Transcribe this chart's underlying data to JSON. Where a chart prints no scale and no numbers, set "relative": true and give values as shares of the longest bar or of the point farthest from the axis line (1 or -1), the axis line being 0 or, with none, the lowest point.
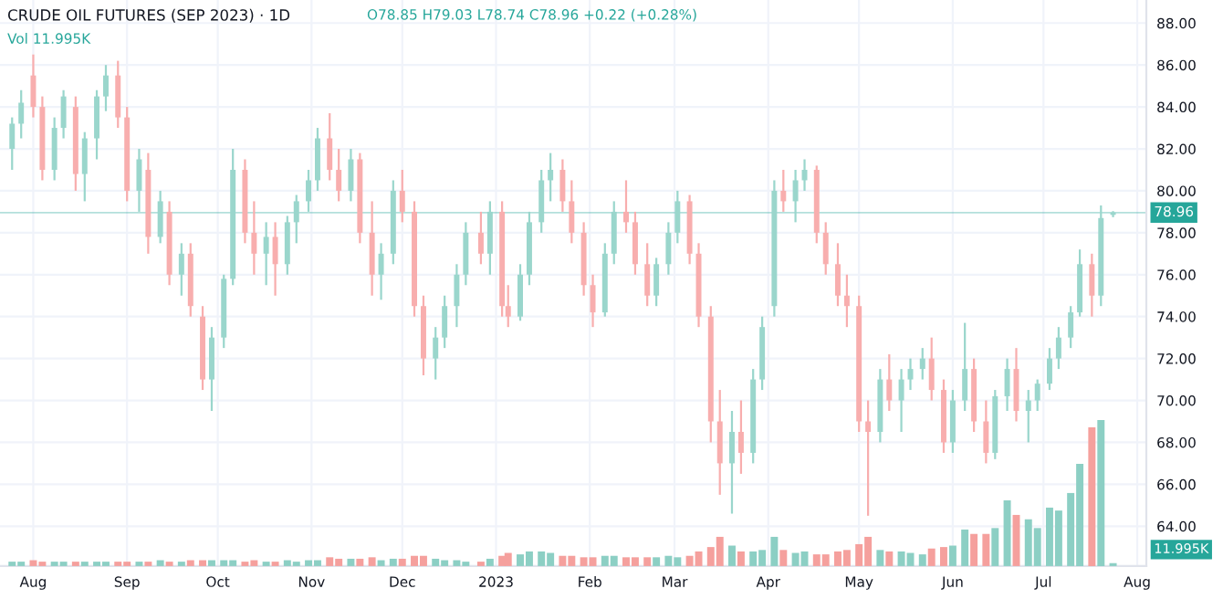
{
  "chart_data": [
    {
      "type": "candlestick",
      "title": "CRUDE OIL FUTURES (SEP 2023) · 1D",
      "subtitle": "O78.85 H79.03 L78.74 C78.96 +0.22 (+0.28%)",
      "annotations": [
        "Vol 11.995K"
      ],
      "x": [
        "2022-07-25",
        "2022-07-28",
        "2022-08-01",
        "2022-08-04",
        "2022-08-08",
        "2022-08-11",
        "2022-08-15",
        "2022-08-18",
        "2022-08-22",
        "2022-08-25",
        "2022-08-29",
        "2022-09-01",
        "2022-09-05",
        "2022-09-08",
        "2022-09-12",
        "2022-09-15",
        "2022-09-19",
        "2022-09-22",
        "2022-09-26",
        "2022-09-29",
        "2022-10-03",
        "2022-10-06",
        "2022-10-10",
        "2022-10-13",
        "2022-10-17",
        "2022-10-20",
        "2022-10-24",
        "2022-10-27",
        "2022-10-31",
        "2022-11-03",
        "2022-11-07",
        "2022-11-10",
        "2022-11-14",
        "2022-11-17",
        "2022-11-21",
        "2022-11-24",
        "2022-11-28",
        "2022-12-01",
        "2022-12-05",
        "2022-12-08",
        "2022-12-12",
        "2022-12-15",
        "2022-12-19",
        "2022-12-22",
        "2022-12-27",
        "2022-12-30",
        "2023-01-03",
        "2023-01-05",
        "2023-01-09",
        "2023-01-12",
        "2023-01-16",
        "2023-01-19",
        "2023-01-23",
        "2023-01-26",
        "2023-01-30",
        "2023-02-02",
        "2023-02-06",
        "2023-02-09",
        "2023-02-13",
        "2023-02-16",
        "2023-02-20",
        "2023-02-23",
        "2023-02-27",
        "2023-03-02",
        "2023-03-06",
        "2023-03-09",
        "2023-03-13",
        "2023-03-16",
        "2023-03-20",
        "2023-03-23",
        "2023-03-27",
        "2023-03-30",
        "2023-04-03",
        "2023-04-06",
        "2023-04-10",
        "2023-04-13",
        "2023-04-17",
        "2023-04-20",
        "2023-04-24",
        "2023-04-27",
        "2023-05-01",
        "2023-05-04",
        "2023-05-08",
        "2023-05-11",
        "2023-05-15",
        "2023-05-18",
        "2023-05-22",
        "2023-05-25",
        "2023-05-29",
        "2023-06-01",
        "2023-06-05",
        "2023-06-08",
        "2023-06-12",
        "2023-06-15",
        "2023-06-19",
        "2023-06-22",
        "2023-06-26",
        "2023-06-29",
        "2023-07-03",
        "2023-07-06",
        "2023-07-10",
        "2023-07-13",
        "2023-07-17",
        "2023-07-20",
        "2023-07-24"
      ],
      "ohlc": [
        [
          82.0,
          83.5,
          81.0,
          83.2
        ],
        [
          83.2,
          84.8,
          82.5,
          84.2
        ],
        [
          85.5,
          86.5,
          83.5,
          84.0
        ],
        [
          84.0,
          84.5,
          80.5,
          81.0
        ],
        [
          81.0,
          83.5,
          80.5,
          83.0
        ],
        [
          83.0,
          84.8,
          82.5,
          84.5
        ],
        [
          84.0,
          84.5,
          80.0,
          80.8
        ],
        [
          80.8,
          82.8,
          79.5,
          82.5
        ],
        [
          82.5,
          84.8,
          81.5,
          84.5
        ],
        [
          84.5,
          86.0,
          83.8,
          85.5
        ],
        [
          85.5,
          86.2,
          83.0,
          83.5
        ],
        [
          83.5,
          84.0,
          79.5,
          80.0
        ],
        [
          80.0,
          82.0,
          79.0,
          81.5
        ],
        [
          81.0,
          81.8,
          77.0,
          77.8
        ],
        [
          77.8,
          80.0,
          77.5,
          79.5
        ],
        [
          79.0,
          79.5,
          75.5,
          76.0
        ],
        [
          76.0,
          77.5,
          75.0,
          77.0
        ],
        [
          77.0,
          77.5,
          74.0,
          74.5
        ],
        [
          74.0,
          74.5,
          70.5,
          71.0
        ],
        [
          71.0,
          73.5,
          69.5,
          73.0
        ],
        [
          73.0,
          76.0,
          72.5,
          75.8
        ],
        [
          75.8,
          82.0,
          75.5,
          81.0
        ],
        [
          81.0,
          81.5,
          77.5,
          78.0
        ],
        [
          78.0,
          79.5,
          76.0,
          77.0
        ],
        [
          77.0,
          78.5,
          75.5,
          77.8
        ],
        [
          77.8,
          78.5,
          75.0,
          76.5
        ],
        [
          76.5,
          78.8,
          76.0,
          78.5
        ],
        [
          78.5,
          79.8,
          77.5,
          79.5
        ],
        [
          79.5,
          81.0,
          79.0,
          80.5
        ],
        [
          80.5,
          83.0,
          80.0,
          82.5
        ],
        [
          82.5,
          83.7,
          80.5,
          81.0
        ],
        [
          81.0,
          82.0,
          79.5,
          80.0
        ],
        [
          80.0,
          82.0,
          79.5,
          81.5
        ],
        [
          81.5,
          81.8,
          77.5,
          78.0
        ],
        [
          78.0,
          79.5,
          75.0,
          76.0
        ],
        [
          76.0,
          77.5,
          74.8,
          77.0
        ],
        [
          77.0,
          80.5,
          76.5,
          80.0
        ],
        [
          80.0,
          81.0,
          78.5,
          79.0
        ],
        [
          79.0,
          79.5,
          74.0,
          74.5
        ],
        [
          74.5,
          75.0,
          71.2,
          72.0
        ],
        [
          72.0,
          73.5,
          71.0,
          73.0
        ],
        [
          73.0,
          75.0,
          72.5,
          74.5
        ],
        [
          74.5,
          76.5,
          73.5,
          76.0
        ],
        [
          76.0,
          78.5,
          75.5,
          78.0
        ],
        [
          78.0,
          79.0,
          76.5,
          77.0
        ],
        [
          77.0,
          79.5,
          76.0,
          79.0
        ],
        [
          79.0,
          79.5,
          74.0,
          74.5
        ],
        [
          74.5,
          75.5,
          73.5,
          74.0
        ],
        [
          74.0,
          76.5,
          73.8,
          76.0
        ],
        [
          76.0,
          79.0,
          75.5,
          78.5
        ],
        [
          78.5,
          81.0,
          78.0,
          80.5
        ],
        [
          80.5,
          81.8,
          79.5,
          81.0
        ],
        [
          81.0,
          81.5,
          79.0,
          79.5
        ],
        [
          79.5,
          80.5,
          77.5,
          78.0
        ],
        [
          78.0,
          78.5,
          75.0,
          75.5
        ],
        [
          75.5,
          76.0,
          73.5,
          74.2
        ],
        [
          74.2,
          77.5,
          74.0,
          77.0
        ],
        [
          77.0,
          79.5,
          76.5,
          79.0
        ],
        [
          79.0,
          80.5,
          78.0,
          78.5
        ],
        [
          78.5,
          79.0,
          76.0,
          76.5
        ],
        [
          76.5,
          77.5,
          74.5,
          75.0
        ],
        [
          75.0,
          76.8,
          74.5,
          76.5
        ],
        [
          76.5,
          78.5,
          76.0,
          78.0
        ],
        [
          78.0,
          80.0,
          77.5,
          79.5
        ],
        [
          79.5,
          79.8,
          76.5,
          77.0
        ],
        [
          77.0,
          77.5,
          73.5,
          74.0
        ],
        [
          74.0,
          74.5,
          68.0,
          69.0
        ],
        [
          69.0,
          70.5,
          65.5,
          67.0
        ],
        [
          67.0,
          69.5,
          64.6,
          68.5
        ],
        [
          68.5,
          70.0,
          66.5,
          67.5
        ],
        [
          67.5,
          71.5,
          67.0,
          71.0
        ],
        [
          71.0,
          74.0,
          70.5,
          73.5
        ],
        [
          74.5,
          80.5,
          74.0,
          80.0
        ],
        [
          80.0,
          81.0,
          79.0,
          79.5
        ],
        [
          79.5,
          81.0,
          78.5,
          80.5
        ],
        [
          80.5,
          81.5,
          80.0,
          81.0
        ],
        [
          81.0,
          81.2,
          77.5,
          78.0
        ],
        [
          78.0,
          78.5,
          76.0,
          76.5
        ],
        [
          76.5,
          77.5,
          74.5,
          75.0
        ],
        [
          75.0,
          76.0,
          73.5,
          74.5
        ],
        [
          74.5,
          75.0,
          68.5,
          69.0
        ],
        [
          69.0,
          70.0,
          64.5,
          68.5
        ],
        [
          68.5,
          71.5,
          68.0,
          71.0
        ],
        [
          71.0,
          72.2,
          69.5,
          70.0
        ],
        [
          70.0,
          71.5,
          68.5,
          71.0
        ],
        [
          71.0,
          72.0,
          70.5,
          71.5
        ],
        [
          71.5,
          72.5,
          71.0,
          72.0
        ],
        [
          72.0,
          73.0,
          70.0,
          70.5
        ],
        [
          70.5,
          71.0,
          67.5,
          68.0
        ],
        [
          68.0,
          70.5,
          67.5,
          70.0
        ],
        [
          70.0,
          73.7,
          69.5,
          71.5
        ],
        [
          71.5,
          72.0,
          68.5,
          69.0
        ],
        [
          69.0,
          70.0,
          67.0,
          67.5
        ],
        [
          67.5,
          70.5,
          67.2,
          70.2
        ],
        [
          70.2,
          72.0,
          69.5,
          71.5
        ],
        [
          71.5,
          72.5,
          69.0,
          69.5
        ],
        [
          69.5,
          70.5,
          68.0,
          70.0
        ],
        [
          70.0,
          71.0,
          69.5,
          70.8
        ],
        [
          70.8,
          72.5,
          70.5,
          72.0
        ],
        [
          72.0,
          73.5,
          71.5,
          73.0
        ],
        [
          73.0,
          74.5,
          72.5,
          74.2
        ],
        [
          74.2,
          77.2,
          74.0,
          76.5
        ],
        [
          76.5,
          77.0,
          74.0,
          75.0
        ],
        [
          75.0,
          79.3,
          74.5,
          78.7
        ],
        [
          78.85,
          79.03,
          78.74,
          78.96
        ]
      ],
      "colors": [
        "#9ad6cc",
        "#9ad6cc",
        "#f8aeae",
        "#f8aeae",
        "#9ad6cc",
        "#9ad6cc",
        "#f8aeae",
        "#9ad6cc",
        "#9ad6cc",
        "#9ad6cc",
        "#f8aeae",
        "#f8aeae",
        "#9ad6cc",
        "#f8aeae",
        "#9ad6cc",
        "#f8aeae",
        "#9ad6cc",
        "#f8aeae",
        "#f8aeae",
        "#9ad6cc",
        "#9ad6cc",
        "#9ad6cc",
        "#f8aeae",
        "#f8aeae",
        "#9ad6cc",
        "#f8aeae",
        "#9ad6cc",
        "#9ad6cc",
        "#9ad6cc",
        "#9ad6cc",
        "#f8aeae",
        "#f8aeae",
        "#9ad6cc",
        "#f8aeae",
        "#f8aeae",
        "#9ad6cc",
        "#9ad6cc",
        "#f8aeae",
        "#f8aeae",
        "#f8aeae",
        "#9ad6cc",
        "#9ad6cc",
        "#9ad6cc",
        "#9ad6cc",
        "#f8aeae",
        "#9ad6cc",
        "#f8aeae",
        "#f8aeae",
        "#9ad6cc",
        "#9ad6cc",
        "#9ad6cc",
        "#9ad6cc",
        "#f8aeae",
        "#f8aeae",
        "#f8aeae",
        "#f8aeae",
        "#9ad6cc",
        "#9ad6cc",
        "#f8aeae",
        "#f8aeae",
        "#f8aeae",
        "#9ad6cc",
        "#9ad6cc",
        "#9ad6cc",
        "#f8aeae",
        "#f8aeae",
        "#f8aeae",
        "#f8aeae",
        "#9ad6cc",
        "#f8aeae",
        "#9ad6cc",
        "#9ad6cc",
        "#9ad6cc",
        "#f8aeae",
        "#9ad6cc",
        "#9ad6cc",
        "#f8aeae",
        "#f8aeae",
        "#f8aeae",
        "#f8aeae",
        "#f8aeae",
        "#f8aeae",
        "#9ad6cc",
        "#f8aeae",
        "#9ad6cc",
        "#9ad6cc",
        "#9ad6cc",
        "#f8aeae",
        "#f8aeae",
        "#9ad6cc",
        "#9ad6cc",
        "#f8aeae",
        "#f8aeae",
        "#9ad6cc",
        "#9ad6cc",
        "#f8aeae",
        "#9ad6cc",
        "#9ad6cc",
        "#9ad6cc",
        "#9ad6cc",
        "#9ad6cc",
        "#9ad6cc",
        "#f8aeae",
        "#9ad6cc",
        "#9ad6cc"
      ],
      "xlim": [
        "2022-07-21",
        "2023-08-04"
      ],
      "xticks": [
        {
          "value": "2022-08-01",
          "label": "Aug"
        },
        {
          "value": "2022-09-01",
          "label": "Sep"
        },
        {
          "value": "2022-10-01",
          "label": "Oct"
        },
        {
          "value": "2022-11-01",
          "label": "Nov"
        },
        {
          "value": "2022-12-01",
          "label": "Dec"
        },
        {
          "value": "2023-01-01",
          "label": "2023"
        },
        {
          "value": "2023-02-01",
          "label": "Feb"
        },
        {
          "value": "2023-03-01",
          "label": "Mar"
        },
        {
          "value": "2023-04-01",
          "label": "Apr"
        },
        {
          "value": "2023-05-01",
          "label": "May"
        },
        {
          "value": "2023-06-01",
          "label": "Jun"
        },
        {
          "value": "2023-07-01",
          "label": "Jul"
        },
        {
          "value": "2023-08-01",
          "label": "Aug"
        }
      ],
      "ylim": [
        62.1,
        89.1
      ],
      "yticks": [
        {
          "value": 64,
          "label": "64.00"
        },
        {
          "value": 66,
          "label": "66.00"
        },
        {
          "value": 68,
          "label": "68.00"
        },
        {
          "value": 70,
          "label": "70.00"
        },
        {
          "value": 72,
          "label": "72.00"
        },
        {
          "value": 74,
          "label": "74.00"
        },
        {
          "value": 76,
          "label": "76.00"
        },
        {
          "value": 78,
          "label": "78.00"
        },
        {
          "value": 80,
          "label": "80.00"
        },
        {
          "value": 82,
          "label": "82.00"
        },
        {
          "value": 84,
          "label": "84.00"
        },
        {
          "value": 86,
          "label": "86.00"
        },
        {
          "value": 88,
          "label": "88.00"
        }
      ],
      "ref_lines": [
        {
          "axis": "y",
          "value": 78.96,
          "label": "78.96",
          "color": "#26a69a"
        }
      ],
      "grid": true
    },
    {
      "type": "bar",
      "relative": true,
      "tick_labels": false,
      "annotations": [
        "11.995K"
      ],
      "x": [
        "2022-07-25",
        "2022-07-28",
        "2022-08-01",
        "2022-08-04",
        "2022-08-08",
        "2022-08-11",
        "2022-08-15",
        "2022-08-18",
        "2022-08-22",
        "2022-08-25",
        "2022-08-29",
        "2022-09-01",
        "2022-09-05",
        "2022-09-08",
        "2022-09-12",
        "2022-09-15",
        "2022-09-19",
        "2022-09-22",
        "2022-09-26",
        "2022-09-29",
        "2022-10-03",
        "2022-10-06",
        "2022-10-10",
        "2022-10-13",
        "2022-10-17",
        "2022-10-20",
        "2022-10-24",
        "2022-10-27",
        "2022-10-31",
        "2022-11-03",
        "2022-11-07",
        "2022-11-10",
        "2022-11-14",
        "2022-11-17",
        "2022-11-21",
        "2022-11-24",
        "2022-11-28",
        "2022-12-01",
        "2022-12-05",
        "2022-12-08",
        "2022-12-12",
        "2022-12-15",
        "2022-12-19",
        "2022-12-22",
        "2022-12-27",
        "2022-12-30",
        "2023-01-03",
        "2023-01-05",
        "2023-01-09",
        "2023-01-12",
        "2023-01-16",
        "2023-01-19",
        "2023-01-23",
        "2023-01-26",
        "2023-01-30",
        "2023-02-02",
        "2023-02-06",
        "2023-02-09",
        "2023-02-13",
        "2023-02-16",
        "2023-02-20",
        "2023-02-23",
        "2023-02-27",
        "2023-03-02",
        "2023-03-06",
        "2023-03-09",
        "2023-03-13",
        "2023-03-16",
        "2023-03-20",
        "2023-03-23",
        "2023-03-27",
        "2023-03-30",
        "2023-04-03",
        "2023-04-06",
        "2023-04-10",
        "2023-04-13",
        "2023-04-17",
        "2023-04-20",
        "2023-04-24",
        "2023-04-27",
        "2023-05-01",
        "2023-05-04",
        "2023-05-08",
        "2023-05-11",
        "2023-05-15",
        "2023-05-18",
        "2023-05-22",
        "2023-05-25",
        "2023-05-29",
        "2023-06-01",
        "2023-06-05",
        "2023-06-08",
        "2023-06-12",
        "2023-06-15",
        "2023-06-19",
        "2023-06-22",
        "2023-06-26",
        "2023-06-29",
        "2023-07-03",
        "2023-07-06",
        "2023-07-10",
        "2023-07-13",
        "2023-07-17",
        "2023-07-20",
        "2023-07-24"
      ],
      "values": [
        0.03,
        0.03,
        0.04,
        0.03,
        0.03,
        0.03,
        0.03,
        0.03,
        0.03,
        0.03,
        0.03,
        0.03,
        0.03,
        0.03,
        0.04,
        0.03,
        0.03,
        0.04,
        0.04,
        0.04,
        0.04,
        0.04,
        0.03,
        0.04,
        0.03,
        0.03,
        0.04,
        0.03,
        0.04,
        0.04,
        0.06,
        0.05,
        0.05,
        0.05,
        0.06,
        0.04,
        0.05,
        0.05,
        0.07,
        0.07,
        0.05,
        0.04,
        0.04,
        0.03,
        0.03,
        0.05,
        0.07,
        0.09,
        0.08,
        0.1,
        0.1,
        0.09,
        0.07,
        0.07,
        0.06,
        0.06,
        0.07,
        0.07,
        0.06,
        0.06,
        0.06,
        0.06,
        0.07,
        0.06,
        0.07,
        0.1,
        0.13,
        0.2,
        0.14,
        0.1,
        0.1,
        0.11,
        0.2,
        0.11,
        0.09,
        0.1,
        0.08,
        0.08,
        0.1,
        0.11,
        0.15,
        0.2,
        0.11,
        0.1,
        0.1,
        0.09,
        0.08,
        0.12,
        0.13,
        0.14,
        0.25,
        0.22,
        0.22,
        0.26,
        0.45,
        0.35,
        0.32,
        0.26,
        0.4,
        0.38,
        0.5,
        0.7,
        0.95,
        1,
        0.02
      ],
      "colors": [
        "#8ccfc4",
        "#8ccfc4",
        "#f5a09d",
        "#f5a09d",
        "#8ccfc4",
        "#8ccfc4",
        "#f5a09d",
        "#8ccfc4",
        "#8ccfc4",
        "#8ccfc4",
        "#f5a09d",
        "#f5a09d",
        "#8ccfc4",
        "#f5a09d",
        "#8ccfc4",
        "#f5a09d",
        "#8ccfc4",
        "#f5a09d",
        "#f5a09d",
        "#8ccfc4",
        "#8ccfc4",
        "#8ccfc4",
        "#f5a09d",
        "#f5a09d",
        "#8ccfc4",
        "#f5a09d",
        "#8ccfc4",
        "#8ccfc4",
        "#8ccfc4",
        "#8ccfc4",
        "#f5a09d",
        "#f5a09d",
        "#8ccfc4",
        "#f5a09d",
        "#f5a09d",
        "#8ccfc4",
        "#8ccfc4",
        "#f5a09d",
        "#f5a09d",
        "#f5a09d",
        "#8ccfc4",
        "#8ccfc4",
        "#8ccfc4",
        "#8ccfc4",
        "#f5a09d",
        "#8ccfc4",
        "#f5a09d",
        "#f5a09d",
        "#8ccfc4",
        "#8ccfc4",
        "#8ccfc4",
        "#8ccfc4",
        "#f5a09d",
        "#f5a09d",
        "#f5a09d",
        "#f5a09d",
        "#8ccfc4",
        "#8ccfc4",
        "#f5a09d",
        "#f5a09d",
        "#f5a09d",
        "#8ccfc4",
        "#8ccfc4",
        "#8ccfc4",
        "#f5a09d",
        "#f5a09d",
        "#f5a09d",
        "#f5a09d",
        "#8ccfc4",
        "#f5a09d",
        "#8ccfc4",
        "#8ccfc4",
        "#8ccfc4",
        "#f5a09d",
        "#8ccfc4",
        "#8ccfc4",
        "#f5a09d",
        "#f5a09d",
        "#f5a09d",
        "#f5a09d",
        "#f5a09d",
        "#f5a09d",
        "#8ccfc4",
        "#f5a09d",
        "#8ccfc4",
        "#8ccfc4",
        "#8ccfc4",
        "#f5a09d",
        "#f5a09d",
        "#8ccfc4",
        "#8ccfc4",
        "#f5a09d",
        "#f5a09d",
        "#8ccfc4",
        "#8ccfc4",
        "#f5a09d",
        "#8ccfc4",
        "#8ccfc4",
        "#8ccfc4",
        "#8ccfc4",
        "#8ccfc4",
        "#8ccfc4",
        "#f5a09d",
        "#8ccfc4",
        "#8ccfc4"
      ],
      "xlim": [
        "2022-07-21",
        "2023-08-04"
      ]
    }
  ]
}
